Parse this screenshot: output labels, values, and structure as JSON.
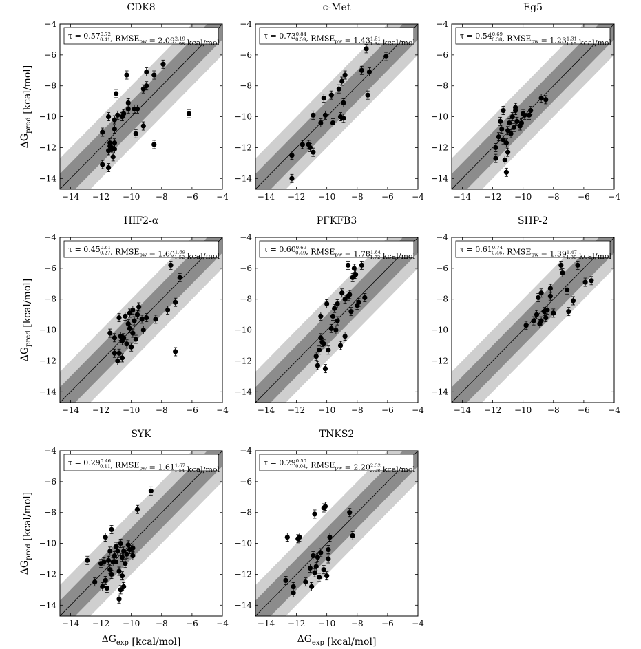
{
  "x_axis_label": "ΔG_exp [kcal/mol]",
  "y_axis_label": "ΔG_pred [kcal/mol]",
  "chart_data": [
    {
      "type": "scatter",
      "title": "CDK8",
      "annotation": "τ = 0.57^{0.72}_{0.41}, RMSE_pw = 2.09^{2.19}_{1.98} kcal/mol",
      "xlim": [
        -14.7,
        -4
      ],
      "ylim": [
        -14.7,
        -4
      ],
      "xticks": [
        -14,
        -12,
        -10,
        -8,
        -6,
        -4
      ],
      "yticks": [
        -14,
        -12,
        -10,
        -8,
        -6,
        -4
      ],
      "bands": [
        1,
        2
      ],
      "grid": false,
      "points": [
        [
          -11.9,
          -13.1
        ],
        [
          -11.5,
          -13.3
        ],
        [
          -11.5,
          -12.2
        ],
        [
          -11.4,
          -11.9
        ],
        [
          -11.3,
          -12.1
        ],
        [
          -11.4,
          -11.7
        ],
        [
          -11.3,
          -12.0
        ],
        [
          -11.2,
          -12.6
        ],
        [
          -11.1,
          -11.7
        ],
        [
          -11.1,
          -12.1
        ],
        [
          -11.9,
          -11.0
        ],
        [
          -11.5,
          -10.0
        ],
        [
          -11.1,
          -10.2
        ],
        [
          -11.1,
          -10.8
        ],
        [
          -10.9,
          -9.9
        ],
        [
          -11.0,
          -8.5
        ],
        [
          -10.5,
          -9.8
        ],
        [
          -10.6,
          -10.0
        ],
        [
          -10.2,
          -9.5
        ],
        [
          -10.2,
          -9.1
        ],
        [
          -10.3,
          -7.3
        ],
        [
          -9.8,
          -9.5
        ],
        [
          -9.6,
          -9.5
        ],
        [
          -9.7,
          -11.1
        ],
        [
          -9.2,
          -8.2
        ],
        [
          -9.0,
          -8.0
        ],
        [
          -9.0,
          -7.1
        ],
        [
          -9.2,
          -10.6
        ],
        [
          -8.5,
          -7.3
        ],
        [
          -7.9,
          -6.6
        ],
        [
          -8.5,
          -11.8
        ],
        [
          -6.2,
          -9.8
        ]
      ]
    },
    {
      "type": "scatter",
      "title": "c-Met",
      "annotation": "τ = 0.73^{0.84}_{0.59}, RMSE_pw = 1.43^{1.51}_{1.34} kcal/mol",
      "xlim": [
        -14.7,
        -4
      ],
      "ylim": [
        -14.7,
        -4
      ],
      "xticks": [
        -14,
        -12,
        -10,
        -8,
        -6,
        -4
      ],
      "yticks": [
        -14,
        -12,
        -10,
        -8,
        -6,
        -4
      ],
      "bands": [
        1,
        2
      ],
      "grid": false,
      "points": [
        [
          -12.3,
          -14.0
        ],
        [
          -12.3,
          -12.5
        ],
        [
          -11.6,
          -11.8
        ],
        [
          -11.2,
          -11.8
        ],
        [
          -11.1,
          -12.0
        ],
        [
          -10.9,
          -12.3
        ],
        [
          -10.9,
          -9.9
        ],
        [
          -10.4,
          -10.4
        ],
        [
          -10.1,
          -9.9
        ],
        [
          -10.2,
          -8.8
        ],
        [
          -9.6,
          -10.4
        ],
        [
          -9.7,
          -8.6
        ],
        [
          -9.2,
          -8.2
        ],
        [
          -9.1,
          -10.0
        ],
        [
          -8.9,
          -9.1
        ],
        [
          -8.9,
          -10.1
        ],
        [
          -9.0,
          -7.7
        ],
        [
          -8.8,
          -7.3
        ],
        [
          -7.7,
          -7.0
        ],
        [
          -7.4,
          -5.6
        ],
        [
          -7.3,
          -8.6
        ],
        [
          -7.2,
          -7.1
        ],
        [
          -6.1,
          -6.1
        ]
      ]
    },
    {
      "type": "scatter",
      "title": "Eg5",
      "annotation": "τ = 0.54^{0.69}_{0.38}, RMSE_pw = 1.23^{1.31}_{1.15} kcal/mol",
      "xlim": [
        -14.7,
        -4
      ],
      "ylim": [
        -14.7,
        -4
      ],
      "xticks": [
        -14,
        -12,
        -10,
        -8,
        -6,
        -4
      ],
      "yticks": [
        -14,
        -12,
        -10,
        -8,
        -6,
        -4
      ],
      "bands": [
        1,
        2
      ],
      "grid": false,
      "points": [
        [
          -11.8,
          -12.7
        ],
        [
          -11.8,
          -12.0
        ],
        [
          -11.6,
          -11.3
        ],
        [
          -11.5,
          -10.3
        ],
        [
          -11.4,
          -10.8
        ],
        [
          -11.3,
          -11.5
        ],
        [
          -11.3,
          -9.6
        ],
        [
          -11.2,
          -12.8
        ],
        [
          -11.1,
          -13.6
        ],
        [
          -11.1,
          -11.7
        ],
        [
          -11.0,
          -10.9
        ],
        [
          -11.0,
          -12.3
        ],
        [
          -10.9,
          -10.4
        ],
        [
          -10.8,
          -11.1
        ],
        [
          -10.7,
          -10.0
        ],
        [
          -10.6,
          -10.7
        ],
        [
          -10.5,
          -9.6
        ],
        [
          -10.4,
          -10.3
        ],
        [
          -10.5,
          -9.4
        ],
        [
          -10.2,
          -10.6
        ],
        [
          -10.1,
          -10.4
        ],
        [
          -10.0,
          -9.8
        ],
        [
          -9.9,
          -9.9
        ],
        [
          -9.6,
          -9.9
        ],
        [
          -9.5,
          -9.6
        ],
        [
          -8.8,
          -8.8
        ],
        [
          -8.5,
          -8.9
        ]
      ]
    },
    {
      "type": "scatter",
      "title": "HIF2-α",
      "annotation": "τ = 0.45^{0.61}_{0.27}, RMSE_pw = 1.60^{1.69}_{1.52} kcal/mol",
      "xlim": [
        -14.7,
        -4
      ],
      "ylim": [
        -14.7,
        -4
      ],
      "xticks": [
        -14,
        -12,
        -10,
        -8,
        -6,
        -4
      ],
      "yticks": [
        -14,
        -12,
        -10,
        -8,
        -6,
        -4
      ],
      "bands": [
        1,
        2
      ],
      "grid": false,
      "points": [
        [
          -11.4,
          -10.2
        ],
        [
          -11.1,
          -10.5
        ],
        [
          -11.1,
          -11.5
        ],
        [
          -10.9,
          -12.0
        ],
        [
          -10.8,
          -11.5
        ],
        [
          -10.8,
          -9.2
        ],
        [
          -10.7,
          -10.4
        ],
        [
          -10.6,
          -10.7
        ],
        [
          -10.6,
          -11.8
        ],
        [
          -10.5,
          -10.5
        ],
        [
          -10.4,
          -9.1
        ],
        [
          -10.3,
          -10.9
        ],
        [
          -10.2,
          -9.6
        ],
        [
          -10.1,
          -8.9
        ],
        [
          -10.1,
          -9.9
        ],
        [
          -10.0,
          -11.1
        ],
        [
          -9.9,
          -8.7
        ],
        [
          -9.9,
          -10.2
        ],
        [
          -9.8,
          -9.4
        ],
        [
          -9.7,
          -10.6
        ],
        [
          -9.6,
          -9.0
        ],
        [
          -9.5,
          -8.5
        ],
        [
          -9.3,
          -9.3
        ],
        [
          -9.2,
          -10.0
        ],
        [
          -9.0,
          -9.2
        ],
        [
          -8.4,
          -9.3
        ],
        [
          -7.6,
          -8.7
        ],
        [
          -7.4,
          -5.8
        ],
        [
          -7.1,
          -8.2
        ],
        [
          -7.1,
          -11.4
        ],
        [
          -6.8,
          -6.6
        ]
      ]
    },
    {
      "type": "scatter",
      "title": "PFKFB3",
      "annotation": "τ = 0.60^{0.69}_{0.49}, RMSE_pw = 1.78^{1.84}_{1.72} kcal/mol",
      "xlim": [
        -14.7,
        -4
      ],
      "ylim": [
        -14.7,
        -4
      ],
      "xticks": [
        -14,
        -12,
        -10,
        -8,
        -6,
        -4
      ],
      "yticks": [
        -14,
        -12,
        -10,
        -8,
        -6,
        -4
      ],
      "bands": [
        1,
        2
      ],
      "grid": false,
      "points": [
        [
          -10.7,
          -11.7
        ],
        [
          -10.6,
          -12.3
        ],
        [
          -10.5,
          -11.3
        ],
        [
          -10.4,
          -10.5
        ],
        [
          -10.4,
          -9.1
        ],
        [
          -10.3,
          -10.8
        ],
        [
          -10.2,
          -10.9
        ],
        [
          -10.1,
          -12.5
        ],
        [
          -10.0,
          -8.3
        ],
        [
          -9.9,
          -11.3
        ],
        [
          -9.7,
          -9.9
        ],
        [
          -9.6,
          -9.1
        ],
        [
          -9.5,
          -8.6
        ],
        [
          -9.4,
          -10.0
        ],
        [
          -9.3,
          -9.4
        ],
        [
          -9.3,
          -8.3
        ],
        [
          -9.1,
          -11.0
        ],
        [
          -9.0,
          -7.6
        ],
        [
          -8.8,
          -8.0
        ],
        [
          -8.8,
          -10.4
        ],
        [
          -8.6,
          -7.8
        ],
        [
          -8.6,
          -5.8
        ],
        [
          -8.5,
          -7.7
        ],
        [
          -8.4,
          -8.8
        ],
        [
          -8.3,
          -6.6
        ],
        [
          -8.2,
          -6.0
        ],
        [
          -8.1,
          -6.4
        ],
        [
          -8.0,
          -8.4
        ],
        [
          -7.9,
          -8.2
        ],
        [
          -7.7,
          -5.8
        ],
        [
          -7.5,
          -7.9
        ]
      ]
    },
    {
      "type": "scatter",
      "title": "SHP-2",
      "annotation": "τ = 0.61^{0.74}_{0.46}, RMSE_pw = 1.39^{1.47}_{1.30} kcal/mol",
      "xlim": [
        -14.7,
        -4
      ],
      "ylim": [
        -14.7,
        -4
      ],
      "xticks": [
        -14,
        -12,
        -10,
        -8,
        -6,
        -4
      ],
      "yticks": [
        -14,
        -12,
        -10,
        -8,
        -6,
        -4
      ],
      "bands": [
        1,
        2
      ],
      "grid": false,
      "points": [
        [
          -9.8,
          -9.7
        ],
        [
          -9.3,
          -9.4
        ],
        [
          -9.1,
          -9.0
        ],
        [
          -9.0,
          -7.9
        ],
        [
          -8.9,
          -9.6
        ],
        [
          -8.8,
          -7.6
        ],
        [
          -8.8,
          -9.4
        ],
        [
          -8.6,
          -8.8
        ],
        [
          -8.5,
          -9.2
        ],
        [
          -8.4,
          -8.7
        ],
        [
          -8.2,
          -7.8
        ],
        [
          -8.2,
          -7.3
        ],
        [
          -8.0,
          -8.9
        ],
        [
          -7.5,
          -5.8
        ],
        [
          -7.4,
          -6.3
        ],
        [
          -7.1,
          -7.4
        ],
        [
          -7.0,
          -8.8
        ],
        [
          -6.7,
          -8.1
        ],
        [
          -6.4,
          -5.8
        ],
        [
          -5.9,
          -6.9
        ],
        [
          -5.5,
          -6.8
        ]
      ]
    },
    {
      "type": "scatter",
      "title": "SYK",
      "annotation": "τ = 0.29^{0.46}_{0.11}, RMSE_pw = 1.61^{1.67}_{1.54} kcal/mol",
      "xlim": [
        -14.7,
        -4
      ],
      "ylim": [
        -14.7,
        -4
      ],
      "xticks": [
        -14,
        -12,
        -10,
        -8,
        -6,
        -4
      ],
      "yticks": [
        -14,
        -12,
        -10,
        -8,
        -6,
        -4
      ],
      "bands": [
        1,
        2
      ],
      "grid": false,
      "points": [
        [
          -12.9,
          -11.1
        ],
        [
          -12.4,
          -12.5
        ],
        [
          -12.0,
          -11.3
        ],
        [
          -11.9,
          -12.8
        ],
        [
          -11.8,
          -11.2
        ],
        [
          -11.7,
          -9.6
        ],
        [
          -11.7,
          -12.4
        ],
        [
          -11.6,
          -12.9
        ],
        [
          -11.5,
          -11.1
        ],
        [
          -11.4,
          -10.5
        ],
        [
          -11.4,
          -11.7
        ],
        [
          -11.3,
          -9.1
        ],
        [
          -11.3,
          -12.0
        ],
        [
          -11.2,
          -11.2
        ],
        [
          -11.1,
          -10.8
        ],
        [
          -11.0,
          -10.2
        ],
        [
          -11.0,
          -11.2
        ],
        [
          -10.9,
          -10.5
        ],
        [
          -10.8,
          -11.8
        ],
        [
          -10.8,
          -13.6
        ],
        [
          -10.7,
          -10.0
        ],
        [
          -10.7,
          -13.0
        ],
        [
          -10.6,
          -10.9
        ],
        [
          -10.6,
          -12.1
        ],
        [
          -10.5,
          -10.5
        ],
        [
          -10.5,
          -12.8
        ],
        [
          -10.4,
          -11.3
        ],
        [
          -10.3,
          -10.7
        ],
        [
          -10.2,
          -10.1
        ],
        [
          -10.1,
          -10.4
        ],
        [
          -9.9,
          -10.3
        ],
        [
          -9.9,
          -10.8
        ],
        [
          -9.6,
          -7.8
        ],
        [
          -8.7,
          -6.6
        ]
      ]
    },
    {
      "type": "scatter",
      "title": "TNKS2",
      "annotation": "τ = 0.29^{0.50}_{0.04}, RMSE_pw = 2.20^{2.32}_{2.08} kcal/mol",
      "xlim": [
        -14.7,
        -4
      ],
      "ylim": [
        -14.7,
        -4
      ],
      "xticks": [
        -14,
        -12,
        -10,
        -8,
        -6,
        -4
      ],
      "yticks": [
        -14,
        -12,
        -10,
        -8,
        -6,
        -4
      ],
      "bands": [
        1,
        2
      ],
      "grid": false,
      "points": [
        [
          -12.7,
          -12.4
        ],
        [
          -12.6,
          -9.6
        ],
        [
          -12.2,
          -12.8
        ],
        [
          -12.2,
          -13.2
        ],
        [
          -11.9,
          -9.7
        ],
        [
          -11.8,
          -9.6
        ],
        [
          -11.4,
          -12.5
        ],
        [
          -11.1,
          -11.6
        ],
        [
          -11.0,
          -12.8
        ],
        [
          -10.9,
          -10.8
        ],
        [
          -10.8,
          -11.9
        ],
        [
          -10.8,
          -8.1
        ],
        [
          -10.7,
          -11.5
        ],
        [
          -10.6,
          -10.9
        ],
        [
          -10.5,
          -12.2
        ],
        [
          -10.4,
          -10.6
        ],
        [
          -10.2,
          -11.7
        ],
        [
          -10.2,
          -7.7
        ],
        [
          -10.1,
          -7.6
        ],
        [
          -10.0,
          -12.1
        ],
        [
          -9.9,
          -10.4
        ],
        [
          -9.9,
          -11.0
        ],
        [
          -9.8,
          -9.6
        ],
        [
          -8.5,
          -8.0
        ],
        [
          -8.3,
          -9.5
        ]
      ]
    }
  ]
}
